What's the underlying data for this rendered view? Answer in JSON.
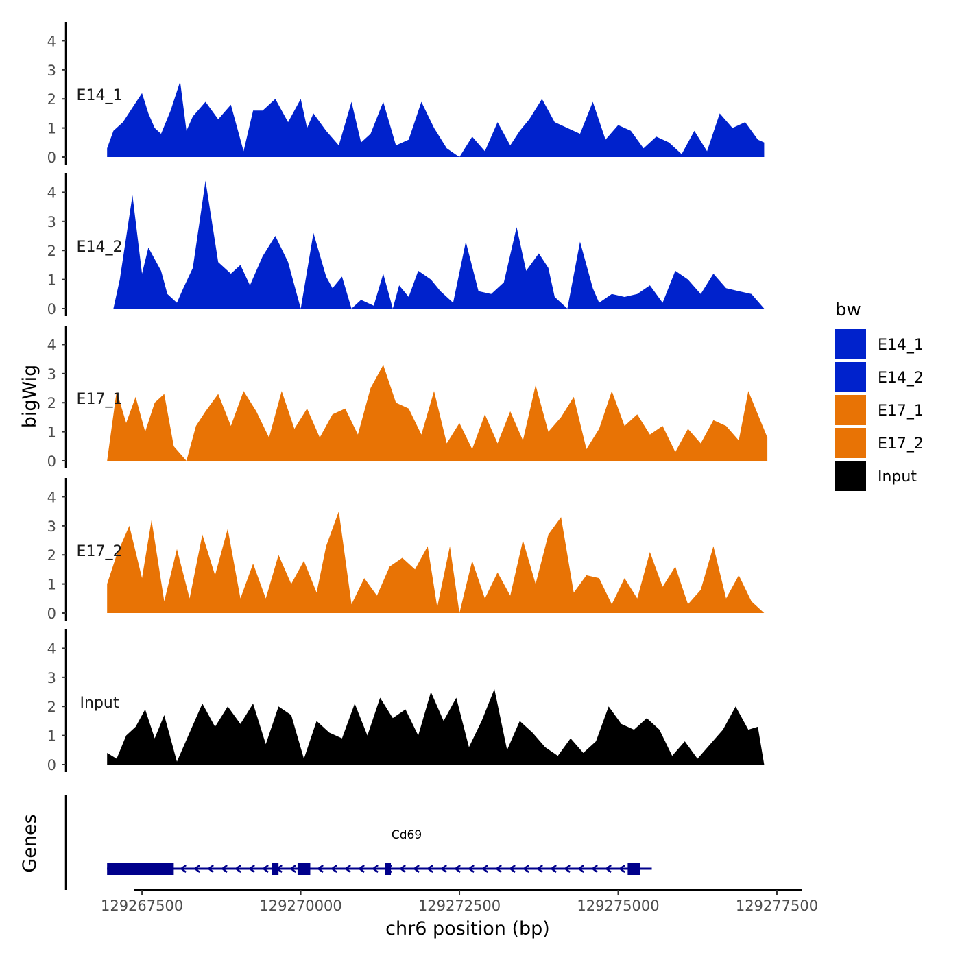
{
  "chart_data": {
    "type": "area",
    "chromosome": "chr6",
    "xlabel": "chr6 position (bp)",
    "ylabel": "bigWig",
    "genes_label": "Genes",
    "xlim": [
      129266300,
      129277900
    ],
    "ylim": [
      0,
      4.6
    ],
    "x_ticks": [
      129267500,
      129270000,
      129272500,
      129275000,
      129277500
    ],
    "y_ticks": [
      0,
      1,
      2,
      3,
      4
    ],
    "legend": {
      "title": "bw",
      "placement": "right",
      "entries": [
        {
          "label": "E14_1",
          "color": "#0022CC"
        },
        {
          "label": "E14_2",
          "color": "#0022CC"
        },
        {
          "label": "E17_1",
          "color": "#E87305"
        },
        {
          "label": "E17_2",
          "color": "#E87305"
        },
        {
          "label": "Input",
          "color": "#000000"
        }
      ]
    },
    "series": [
      {
        "name": "E14_1",
        "color": "#0022CC",
        "x": [
          129266950,
          129267050,
          129267200,
          129267350,
          129267500,
          129267600,
          129267700,
          129267800,
          129267950,
          129268100,
          129268200,
          129268300,
          129268500,
          129268700,
          129268900,
          129269100,
          129269250,
          129269400,
          129269600,
          129269800,
          129270000,
          129270100,
          129270200,
          129270400,
          129270600,
          129270800,
          129270950,
          129271100,
          129271300,
          129271500,
          129271700,
          129271900,
          129272100,
          129272300,
          129272500,
          129272700,
          129272900,
          129273100,
          129273300,
          129273450,
          129273600,
          129273800,
          129274000,
          129274200,
          129274400,
          129274600,
          129274800,
          129275000,
          129275200,
          129275400,
          129275600,
          129275800,
          129276000,
          129276200,
          129276400,
          129276600,
          129276800,
          129277000,
          129277200,
          129277300
        ],
        "y": [
          0.3,
          0.9,
          1.2,
          1.7,
          2.2,
          1.5,
          1.0,
          0.8,
          1.6,
          2.6,
          0.9,
          1.4,
          1.9,
          1.3,
          1.8,
          0.2,
          1.6,
          1.6,
          2.0,
          1.2,
          2.0,
          1.0,
          1.5,
          0.9,
          0.4,
          1.9,
          0.5,
          0.8,
          1.9,
          0.4,
          0.6,
          1.9,
          1.0,
          0.3,
          0.0,
          0.7,
          0.2,
          1.2,
          0.4,
          0.9,
          1.3,
          2.0,
          1.2,
          1.0,
          0.8,
          1.9,
          0.6,
          1.1,
          0.9,
          0.3,
          0.7,
          0.5,
          0.1,
          0.9,
          0.2,
          1.5,
          1.0,
          1.2,
          0.6,
          0.5
        ]
      },
      {
        "name": "E14_2",
        "color": "#0022CC",
        "x": [
          129267050,
          129267150,
          129267350,
          129267500,
          129267600,
          129267800,
          129267900,
          129268050,
          129268150,
          129268300,
          129268500,
          129268700,
          129268900,
          129269050,
          129269200,
          129269400,
          129269600,
          129269800,
          129270000,
          129270200,
          129270400,
          129270500,
          129270650,
          129270800,
          129270950,
          129271150,
          129271300,
          129271450,
          129271550,
          129271700,
          129271850,
          129272050,
          129272200,
          129272400,
          129272600,
          129272800,
          129273000,
          129273200,
          129273400,
          129273550,
          129273750,
          129273900,
          129274000,
          129274200,
          129274400,
          129274600,
          129274700,
          129274900,
          129275100,
          129275300,
          129275500,
          129275700,
          129275900,
          129276100,
          129276300,
          129276500,
          129276700,
          129276900,
          129277100,
          129277300
        ],
        "y": [
          0.0,
          1.0,
          3.9,
          1.2,
          2.1,
          1.3,
          0.5,
          0.2,
          0.7,
          1.4,
          4.4,
          1.6,
          1.2,
          1.5,
          0.8,
          1.8,
          2.5,
          1.6,
          0.0,
          2.6,
          1.1,
          0.7,
          1.1,
          0.0,
          0.3,
          0.1,
          1.2,
          0.0,
          0.8,
          0.4,
          1.3,
          1.0,
          0.6,
          0.2,
          2.3,
          0.6,
          0.5,
          0.9,
          2.8,
          1.3,
          1.9,
          1.4,
          0.4,
          0.0,
          2.3,
          0.7,
          0.2,
          0.5,
          0.4,
          0.5,
          0.8,
          0.2,
          1.3,
          1.0,
          0.5,
          1.2,
          0.7,
          0.6,
          0.5,
          0.0
        ]
      },
      {
        "name": "E17_1",
        "color": "#E87305",
        "x": [
          129266950,
          129267100,
          129267250,
          129267400,
          129267550,
          129267700,
          129267850,
          129268000,
          129268200,
          129268350,
          129268500,
          129268700,
          129268900,
          129269100,
          129269300,
          129269500,
          129269700,
          129269900,
          129270100,
          129270300,
          129270500,
          129270700,
          129270900,
          129271100,
          129271300,
          129271500,
          129271700,
          129271900,
          129272100,
          129272300,
          129272500,
          129272700,
          129272900,
          129273100,
          129273300,
          129273500,
          129273700,
          129273900,
          129274100,
          129274300,
          129274500,
          129274700,
          129274900,
          129275100,
          129275300,
          129275500,
          129275700,
          129275900,
          129276100,
          129276300,
          129276500,
          129276700,
          129276900,
          129277050,
          129277200,
          129277350
        ],
        "y": [
          0.0,
          2.4,
          1.3,
          2.2,
          1.0,
          2.0,
          2.3,
          0.5,
          0.0,
          1.2,
          1.7,
          2.3,
          1.2,
          2.4,
          1.7,
          0.8,
          2.4,
          1.1,
          1.8,
          0.8,
          1.6,
          1.8,
          0.9,
          2.5,
          3.3,
          2.0,
          1.8,
          0.9,
          2.4,
          0.6,
          1.3,
          0.4,
          1.6,
          0.6,
          1.7,
          0.7,
          2.6,
          1.0,
          1.5,
          2.2,
          0.4,
          1.1,
          2.4,
          1.2,
          1.6,
          0.9,
          1.2,
          0.3,
          1.1,
          0.6,
          1.4,
          1.2,
          0.7,
          2.4,
          1.6,
          0.8
        ]
      },
      {
        "name": "E17_2",
        "color": "#E87305",
        "x": [
          129266950,
          129267100,
          129267300,
          129267500,
          129267650,
          129267850,
          129268050,
          129268250,
          129268450,
          129268650,
          129268850,
          129269050,
          129269250,
          129269450,
          129269650,
          129269850,
          129270050,
          129270250,
          129270400,
          129270600,
          129270800,
          129271000,
          129271200,
          129271400,
          129271600,
          129271800,
          129272000,
          129272150,
          129272350,
          129272500,
          129272700,
          129272900,
          129273100,
          129273300,
          129273500,
          129273700,
          129273900,
          129274100,
          129274300,
          129274500,
          129274700,
          129274900,
          129275100,
          129275300,
          129275500,
          129275700,
          129275900,
          129276100,
          129276300,
          129276500,
          129276700,
          129276900,
          129277100,
          129277300
        ],
        "y": [
          1.0,
          2.0,
          3.0,
          1.2,
          3.2,
          0.4,
          2.2,
          0.5,
          2.7,
          1.3,
          2.9,
          0.5,
          1.7,
          0.5,
          2.0,
          1.0,
          1.8,
          0.7,
          2.3,
          3.5,
          0.3,
          1.2,
          0.6,
          1.6,
          1.9,
          1.5,
          2.3,
          0.2,
          2.3,
          0.0,
          1.8,
          0.5,
          1.4,
          0.6,
          2.5,
          1.0,
          2.7,
          3.3,
          0.7,
          1.3,
          1.2,
          0.3,
          1.2,
          0.5,
          2.1,
          0.9,
          1.6,
          0.3,
          0.8,
          2.3,
          0.5,
          1.3,
          0.4,
          0.0
        ]
      },
      {
        "name": "Input",
        "color": "#000000",
        "x": [
          129266950,
          129267100,
          129267250,
          129267400,
          129267550,
          129267700,
          129267850,
          129268050,
          129268250,
          129268450,
          129268650,
          129268850,
          129269050,
          129269250,
          129269450,
          129269650,
          129269850,
          129270050,
          129270250,
          129270450,
          129270650,
          129270850,
          129271050,
          129271250,
          129271450,
          129271650,
          129271850,
          129272050,
          129272250,
          129272450,
          129272650,
          129272850,
          129273050,
          129273250,
          129273450,
          129273650,
          129273850,
          129274050,
          129274250,
          129274450,
          129274650,
          129274850,
          129275050,
          129275250,
          129275450,
          129275650,
          129275850,
          129276050,
          129276250,
          129276450,
          129276650,
          129276850,
          129277050,
          129277200,
          129277300
        ],
        "y": [
          0.4,
          0.2,
          1.0,
          1.3,
          1.9,
          0.9,
          1.7,
          0.1,
          1.1,
          2.1,
          1.3,
          2.0,
          1.4,
          2.1,
          0.7,
          2.0,
          1.7,
          0.2,
          1.5,
          1.1,
          0.9,
          2.1,
          1.0,
          2.3,
          1.6,
          1.9,
          1.0,
          2.5,
          1.5,
          2.3,
          0.6,
          1.5,
          2.6,
          0.5,
          1.5,
          1.1,
          0.6,
          0.3,
          0.9,
          0.4,
          0.8,
          2.0,
          1.4,
          1.2,
          1.6,
          1.2,
          0.3,
          0.8,
          0.2,
          0.7,
          1.2,
          2.0,
          1.2,
          1.3,
          0.0
        ]
      }
    ],
    "genes": [
      {
        "name": "Cd69",
        "strand": "-",
        "start": 129266950,
        "end": 129275400,
        "color": "#00008B",
        "exons": [
          [
            129266950,
            129268000
          ],
          [
            129269550,
            129269650
          ],
          [
            129269950,
            129270150
          ],
          [
            129271330,
            129271420
          ],
          [
            129275150,
            129275350
          ]
        ]
      }
    ]
  }
}
